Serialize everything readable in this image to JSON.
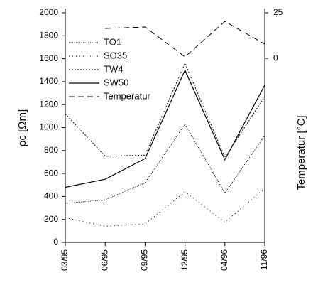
{
  "chart_data": {
    "type": "line",
    "categories": [
      "03/95",
      "06/95",
      "09/95",
      "12/95",
      "04/96",
      "11/96"
    ],
    "ylabel": "ρc [Ωm]",
    "y2label": "Temperatur [°C]",
    "ylim": [
      0,
      2000
    ],
    "yticks": [
      0,
      200,
      400,
      600,
      800,
      1000,
      1200,
      1400,
      1600,
      1800,
      2000
    ],
    "y2lim": [
      -101,
      25
    ],
    "y2ticks": [
      0,
      25
    ],
    "legend": "upper left",
    "series": [
      {
        "name": "TO1",
        "color": "#000000",
        "dash": "1,1.5",
        "values": [
          340,
          370,
          520,
          1030,
          430,
          930
        ]
      },
      {
        "name": "SO35",
        "color": "#000000",
        "dash": "1,4",
        "values": [
          215,
          140,
          160,
          440,
          175,
          470
        ]
      },
      {
        "name": "TW4",
        "color": "#000000",
        "dash": "2,2",
        "values": [
          1120,
          750,
          760,
          1560,
          740,
          1270
        ]
      },
      {
        "name": "SW50",
        "color": "#000000",
        "dash": "none",
        "values": [
          480,
          550,
          730,
          1500,
          720,
          1370
        ]
      },
      {
        "name": "Temperatur",
        "color": "#000000",
        "dash": "8,5",
        "axis": "y2",
        "values": [
          null,
          16.4,
          17.2,
          0.8,
          20.3,
          7.8
        ]
      }
    ]
  }
}
